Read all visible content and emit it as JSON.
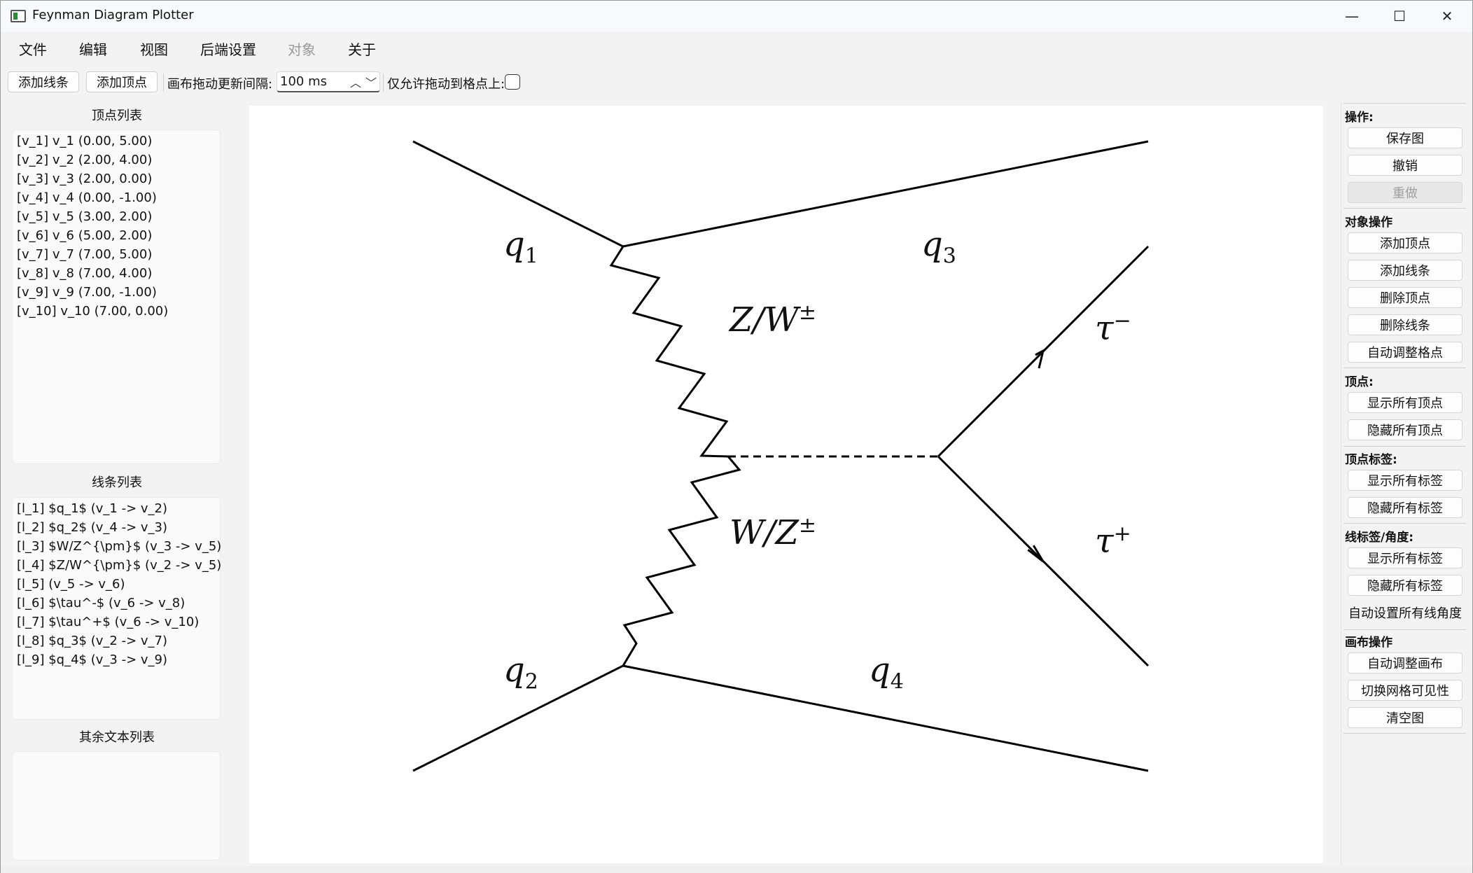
{
  "window": {
    "title": "Feynman Diagram Plotter",
    "controls": {
      "minimize": "—",
      "maximize": "☐",
      "close": "✕"
    }
  },
  "menu": {
    "items": [
      {
        "label": "文件",
        "enabled": true
      },
      {
        "label": "编辑",
        "enabled": true
      },
      {
        "label": "视图",
        "enabled": true
      },
      {
        "label": "后端设置",
        "enabled": true
      },
      {
        "label": "对象",
        "enabled": false
      },
      {
        "label": "关于",
        "enabled": true
      }
    ]
  },
  "toolbar": {
    "add_line": "添加线条",
    "add_vertex": "添加顶点",
    "drag_interval_label": "画布拖动更新间隔:",
    "drag_interval_value": "100 ms",
    "snap_label": "仅允许拖动到格点上:",
    "snap_checked": false
  },
  "vertex_list": {
    "title": "顶点列表",
    "items": [
      "[v_1] v_1 (0.00, 5.00)",
      "[v_2] v_2 (2.00, 4.00)",
      "[v_3] v_3 (2.00, 0.00)",
      "[v_4] v_4 (0.00, -1.00)",
      "[v_5] v_5 (3.00, 2.00)",
      "[v_6] v_6 (5.00, 2.00)",
      "[v_7] v_7 (7.00, 5.00)",
      "[v_8] v_8 (7.00, 4.00)",
      "[v_9] v_9 (7.00, -1.00)",
      "[v_10] v_10 (7.00, 0.00)"
    ]
  },
  "line_list": {
    "title": "线条列表",
    "items": [
      "[l_1]  $q_1$ (v_1 -> v_2)",
      "[l_2]  $q_2$ (v_4 -> v_3)",
      "[l_3]  $W/Z^{\\pm}$ (v_3 -> v_5)",
      "[l_4]  $Z/W^{\\pm}$ (v_2 -> v_5)",
      "[l_5]   (v_5 -> v_6)",
      "[l_6]  $\\tau^-$ (v_6 -> v_8)",
      "[l_7]  $\\tau^+$ (v_6 -> v_10)",
      "[l_8]  $q_3$ (v_2 -> v_7)",
      "[l_9]  $q_4$ (v_3 -> v_9)"
    ]
  },
  "other_text_list": {
    "title": "其余文本列表",
    "items": []
  },
  "diagram": {
    "labels": {
      "q1": {
        "base": "q",
        "sub": "1"
      },
      "q2": {
        "base": "q",
        "sub": "2"
      },
      "q3": {
        "base": "q",
        "sub": "3"
      },
      "q4": {
        "base": "q",
        "sub": "4"
      },
      "zw": {
        "base": "Z/W",
        "sup": "±"
      },
      "wz": {
        "base": "W/Z",
        "sup": "±"
      },
      "tau_minus": {
        "base": "τ",
        "sup": "−"
      },
      "tau_plus": {
        "base": "τ",
        "sup": "+"
      }
    }
  },
  "right_panel": {
    "operations_title": "操作:",
    "save": "保存图",
    "undo": "撤销",
    "redo": "重做",
    "object_ops_title": "对象操作",
    "add_vertex": "添加顶点",
    "add_line": "添加线条",
    "delete_vertex": "删除顶点",
    "delete_line": "删除线条",
    "auto_grid": "自动调整格点",
    "vertex_title": "顶点:",
    "show_vertices": "显示所有顶点",
    "hide_vertices": "隐藏所有顶点",
    "vertex_label_title": "顶点标签:",
    "show_vertex_labels": "显示所有标签",
    "hide_vertex_labels": "隐藏所有标签",
    "line_label_title": "线标签/角度:",
    "show_line_labels": "显示所有标签",
    "hide_line_labels": "隐藏所有标签",
    "auto_line_angles": "自动设置所有线角度",
    "canvas_title": "画布操作",
    "auto_canvas": "自动调整画布",
    "toggle_grid": "切换网格可见性",
    "clear": "清空图"
  }
}
